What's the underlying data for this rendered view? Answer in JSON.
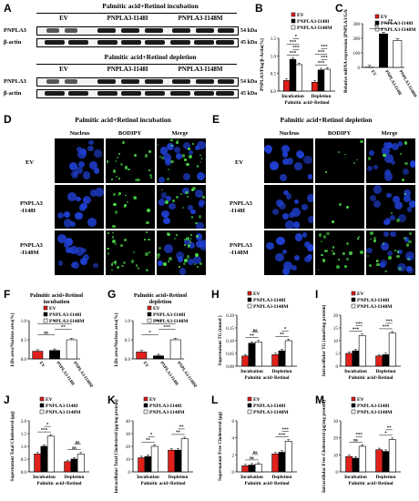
{
  "panels": {
    "A": "A",
    "B": "B",
    "C": "C",
    "D": "D",
    "E": "E",
    "F": "F",
    "G": "G",
    "H": "H",
    "I": "I",
    "J": "J",
    "K": "K",
    "L": "L",
    "M": "M"
  },
  "blot": {
    "incubation_title": "Palmitic acid+Retinol incubation",
    "depletion_title": "Palmitic acid+Retinol depletion",
    "lanes": [
      "EV",
      "PNPLA3-I148I",
      "PNPLA3-I148M"
    ],
    "rows": [
      "PNPLA3",
      "β-actin"
    ],
    "kda": [
      "54 kDa",
      "45 kDa"
    ]
  },
  "micro": {
    "incubation_title": "Palmitic acid+Retinol incubation",
    "depletion_title": "Palmitic acid+Retinol depletion",
    "columns": [
      "Nucleus",
      "BODIPY",
      "Merge"
    ],
    "rows": [
      "EV",
      "PNPLA3\n-I148I",
      "PNPLA3\n-I148M"
    ]
  },
  "legend": [
    "EV",
    "PNPLA3-I148I",
    "PNPLA3-I148M"
  ],
  "colors": {
    "ev": "#e0201b",
    "i148i": "#000000",
    "i148m": "#ffffff"
  },
  "chart_data": [
    {
      "id": "B",
      "type": "bar",
      "ylabel": "PNPLA3/Flag/β-Actin(%)",
      "xlabel": "Palmitic acid+Retinol",
      "categories": [
        "Incubation",
        "Depletion"
      ],
      "series": [
        {
          "name": "EV",
          "values": [
            0.3,
            0.25
          ]
        },
        {
          "name": "PNPLA3-I148I",
          "values": [
            0.9,
            0.6
          ]
        },
        {
          "name": "PNPLA3-I148M",
          "values": [
            0.75,
            0.62
          ]
        }
      ],
      "ylim": [
        0,
        1.5
      ],
      "yticks": [
        "0.0",
        "0.5",
        "1.0",
        "1.5"
      ],
      "sig": [
        "***",
        "***",
        "***",
        "*",
        "***",
        "***",
        "***",
        "***"
      ]
    },
    {
      "id": "C",
      "type": "bar",
      "ylabel": "Relative mRNA expression (PNPLA3/GAPDH)",
      "categories": [
        "EV",
        "PNPLA3-I148I",
        "PNPLA3-I148M"
      ],
      "values": [
        2,
        230,
        185
      ],
      "ylim": [
        0,
        300
      ],
      "yticks": [
        "0",
        "100",
        "200",
        "300"
      ],
      "sig": [
        "**",
        "**"
      ]
    },
    {
      "id": "F",
      "type": "bar",
      "title": "Palmitic acid+Retinol incubation",
      "ylabel": "LDs area/Nucleus area(%)",
      "categories": [
        "EV",
        "PNPLA3-I148I",
        "PNPLA3-I148M"
      ],
      "values": [
        0.2,
        0.22,
        0.5
      ],
      "ylim": [
        0,
        1.0
      ],
      "yticks": [
        "0.0",
        "0.5",
        "1.0"
      ],
      "sig": [
        "ns",
        "**",
        "*"
      ]
    },
    {
      "id": "G",
      "type": "bar",
      "title": "Palmitic acid+Retinol depletion",
      "ylabel": "LDs area/Nucleus area(%)",
      "categories": [
        "EV",
        "PNPLA3-I148I",
        "PNPLA3-I148M"
      ],
      "values": [
        0.18,
        0.08,
        0.5
      ],
      "ylim": [
        0,
        1.0
      ],
      "yticks": [
        "0.0",
        "0.5",
        "1.0"
      ],
      "sig": [
        "*",
        "***",
        "***"
      ]
    },
    {
      "id": "H",
      "type": "bar",
      "ylabel": "Supernatant TG (mmol )",
      "xlabel": "Palmitic acid+Retinol",
      "categories": [
        "Incubation",
        "Depletion"
      ],
      "series": [
        {
          "name": "EV",
          "values": [
            0.04,
            0.045
          ]
        },
        {
          "name": "PNPLA3-I148I",
          "values": [
            0.09,
            0.06
          ]
        },
        {
          "name": "PNPLA3-I148M",
          "values": [
            0.095,
            0.1
          ]
        }
      ],
      "ylim": [
        0,
        0.2
      ],
      "yticks": [
        "0.00",
        "0.05",
        "0.10",
        "0.15",
        "0.20"
      ],
      "sig": [
        "**",
        "ns",
        "**",
        "*"
      ]
    },
    {
      "id": "I",
      "type": "bar",
      "ylabel": "Intracellular TG (nmol/mg protein)",
      "xlabel": "Palmitic acid+Retinol",
      "categories": [
        "Incubation",
        "Depletion"
      ],
      "series": [
        {
          "name": "EV",
          "values": [
            5,
            4
          ]
        },
        {
          "name": "PNPLA3-I148I",
          "values": [
            6,
            4.5
          ]
        },
        {
          "name": "PNPLA3-I148M",
          "values": [
            12,
            13
          ]
        }
      ],
      "ylim": [
        0,
        20
      ],
      "yticks": [
        "0",
        "5",
        "10",
        "15",
        "20"
      ],
      "sig": [
        "***",
        "***",
        "***",
        "***"
      ]
    },
    {
      "id": "J",
      "type": "bar",
      "ylabel": "Supernatant Total Cholesterol (μg)",
      "xlabel": "Palmitic acid+Retinol",
      "categories": [
        "Incubation",
        "Depletion"
      ],
      "series": [
        {
          "name": "EV",
          "values": [
            0.7,
            0.4
          ]
        },
        {
          "name": "PNPLA3-I148I",
          "values": [
            1.0,
            0.5
          ]
        },
        {
          "name": "PNPLA3-I148M",
          "values": [
            1.4,
            0.7
          ]
        }
      ],
      "ylim": [
        0,
        2.0
      ],
      "yticks": [
        "0.0",
        "0.5",
        "1.0",
        "1.5",
        "2.0"
      ],
      "sig": [
        "***",
        "*",
        "ns",
        "ns"
      ]
    },
    {
      "id": "K",
      "type": "bar",
      "ylabel": "Intracellular Total Cholesterol (μg/mg protein)",
      "xlabel": "Palmitic acid+Retinol",
      "categories": [
        "Incubation",
        "Depletion"
      ],
      "series": [
        {
          "name": "EV",
          "values": [
            11,
            17
          ]
        },
        {
          "name": "PNPLA3-I148I",
          "values": [
            12,
            17
          ]
        },
        {
          "name": "PNPLA3-I148M",
          "values": [
            20,
            26
          ]
        }
      ],
      "ylim": [
        0,
        40
      ],
      "yticks": [
        "0",
        "10",
        "20",
        "30",
        "40"
      ],
      "sig": [
        "**",
        "*",
        "**",
        "**"
      ]
    },
    {
      "id": "L",
      "type": "bar",
      "ylabel": "Supernatant Free Cholesterol (μg)",
      "xlabel": "Palmitic acid+Retinol",
      "categories": [
        "Incubation",
        "Depletion"
      ],
      "series": [
        {
          "name": "EV",
          "values": [
            0.7,
            2.1
          ]
        },
        {
          "name": "PNPLA3-I148I",
          "values": [
            0.8,
            2.3
          ]
        },
        {
          "name": "PNPLA3-I148M",
          "values": [
            0.9,
            3.6
          ]
        }
      ],
      "ylim": [
        0,
        6
      ],
      "yticks": [
        "0",
        "2",
        "4",
        "6"
      ],
      "sig": [
        "ns",
        "ns",
        "***",
        "***"
      ]
    },
    {
      "id": "M",
      "type": "bar",
      "ylabel": "Intracellular Free Cholesterol (μg/mg protein)",
      "xlabel": "Palmitic acid+Retinol",
      "categories": [
        "Incubation",
        "Depletion"
      ],
      "series": [
        {
          "name": "EV",
          "values": [
            9,
            13
          ]
        },
        {
          "name": "PNPLA3-I148I",
          "values": [
            8,
            12
          ]
        },
        {
          "name": "PNPLA3-I148M",
          "values": [
            15,
            19
          ]
        }
      ],
      "ylim": [
        0,
        30
      ],
      "yticks": [
        "0",
        "10",
        "20",
        "30"
      ],
      "sig": [
        "ns",
        "***",
        "*",
        "**"
      ]
    }
  ]
}
